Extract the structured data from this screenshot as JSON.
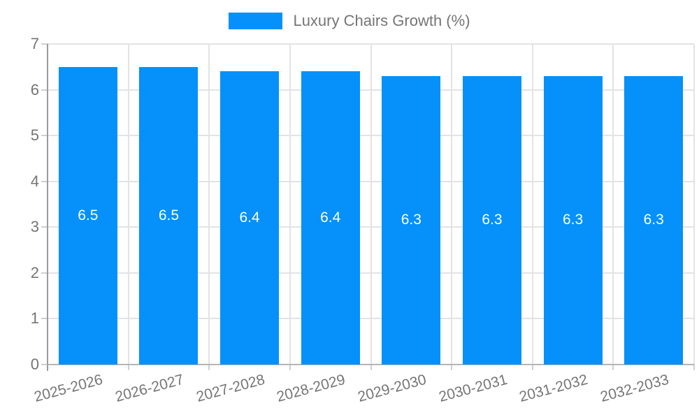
{
  "legend": {
    "label": "Luxury Chairs Growth (%)"
  },
  "chart_data": {
    "type": "bar",
    "title": "",
    "categories": [
      "2025-2026",
      "2026-2027",
      "2027-2028",
      "2028-2029",
      "2029-2030",
      "2030-2031",
      "2031-2032",
      "2032-2033"
    ],
    "series": [
      {
        "name": "Luxury Chairs Growth (%)",
        "values": [
          6.5,
          6.5,
          6.4,
          6.4,
          6.3,
          6.3,
          6.3,
          6.3
        ]
      }
    ],
    "xlabel": "",
    "ylabel": "",
    "ylim": [
      0,
      7
    ],
    "yticks": [
      0,
      1,
      2,
      3,
      4,
      5,
      6,
      7
    ],
    "grid": true,
    "legend_position": "top",
    "bar_color": "#0590FA",
    "value_label_color": "#FFFFFF",
    "axis_text_color": "#757575",
    "value_label_position": "inside-middle",
    "value_label_format": "1-decimal"
  }
}
